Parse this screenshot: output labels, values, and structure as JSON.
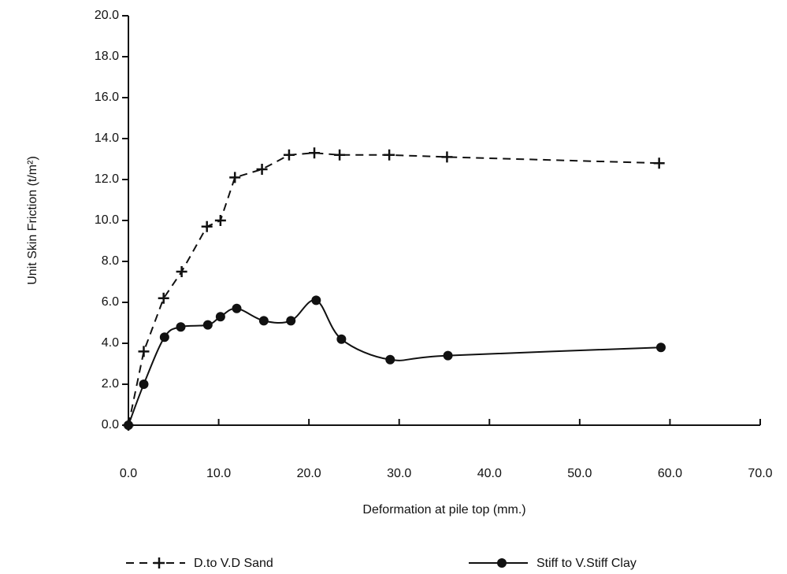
{
  "chart_data": {
    "type": "line",
    "x_label": "Deformation at pile top (mm.)",
    "y_label": "Unit Skin Friction (t/m²)",
    "xlim": [
      0,
      70
    ],
    "ylim": [
      0,
      20
    ],
    "xticks": [
      {
        "value": 0,
        "label": "0.0"
      },
      {
        "value": 10,
        "label": "10.0"
      },
      {
        "value": 20,
        "label": "20.0"
      },
      {
        "value": 30,
        "label": "30.0"
      },
      {
        "value": 40,
        "label": "40.0"
      },
      {
        "value": 50,
        "label": "50.0"
      },
      {
        "value": 60,
        "label": "60.0"
      },
      {
        "value": 70,
        "label": "70.0"
      }
    ],
    "yticks": [
      {
        "value": 0,
        "label": "0.0"
      },
      {
        "value": 2,
        "label": "2.0"
      },
      {
        "value": 4,
        "label": "4.0"
      },
      {
        "value": 6,
        "label": "6.0"
      },
      {
        "value": 8,
        "label": "8.0"
      },
      {
        "value": 10,
        "label": "10.0"
      },
      {
        "value": 12,
        "label": "12.0"
      },
      {
        "value": 14,
        "label": "14.0"
      },
      {
        "value": 16,
        "label": "16.0"
      },
      {
        "value": 18,
        "label": "18.0"
      },
      {
        "value": 20,
        "label": "20.0"
      }
    ],
    "series": [
      {
        "name": "D.to V.D Sand",
        "color": "#111111",
        "dash": true,
        "marker": "plus",
        "x": [
          0,
          1.7,
          3.9,
          5.9,
          8.7,
          10.2,
          11.8,
          14.8,
          17.8,
          20.6,
          23.4,
          28.9,
          35.3,
          58.8
        ],
        "values": [
          0,
          3.6,
          6.2,
          7.5,
          9.7,
          10.0,
          12.1,
          12.5,
          13.2,
          13.3,
          13.2,
          13.2,
          13.1,
          12.8
        ]
      },
      {
        "name": "Stiff to V.Stiff Clay",
        "color": "#111111",
        "dash": false,
        "marker": "circle",
        "x": [
          0,
          1.7,
          4.0,
          5.8,
          8.8,
          10.2,
          12.0,
          15.0,
          18.0,
          20.8,
          23.6,
          29.0,
          35.4,
          59.0
        ],
        "values": [
          0,
          2.0,
          4.3,
          4.8,
          4.9,
          5.3,
          5.7,
          5.1,
          5.1,
          6.1,
          4.2,
          3.2,
          3.4,
          3.8
        ]
      }
    ]
  }
}
